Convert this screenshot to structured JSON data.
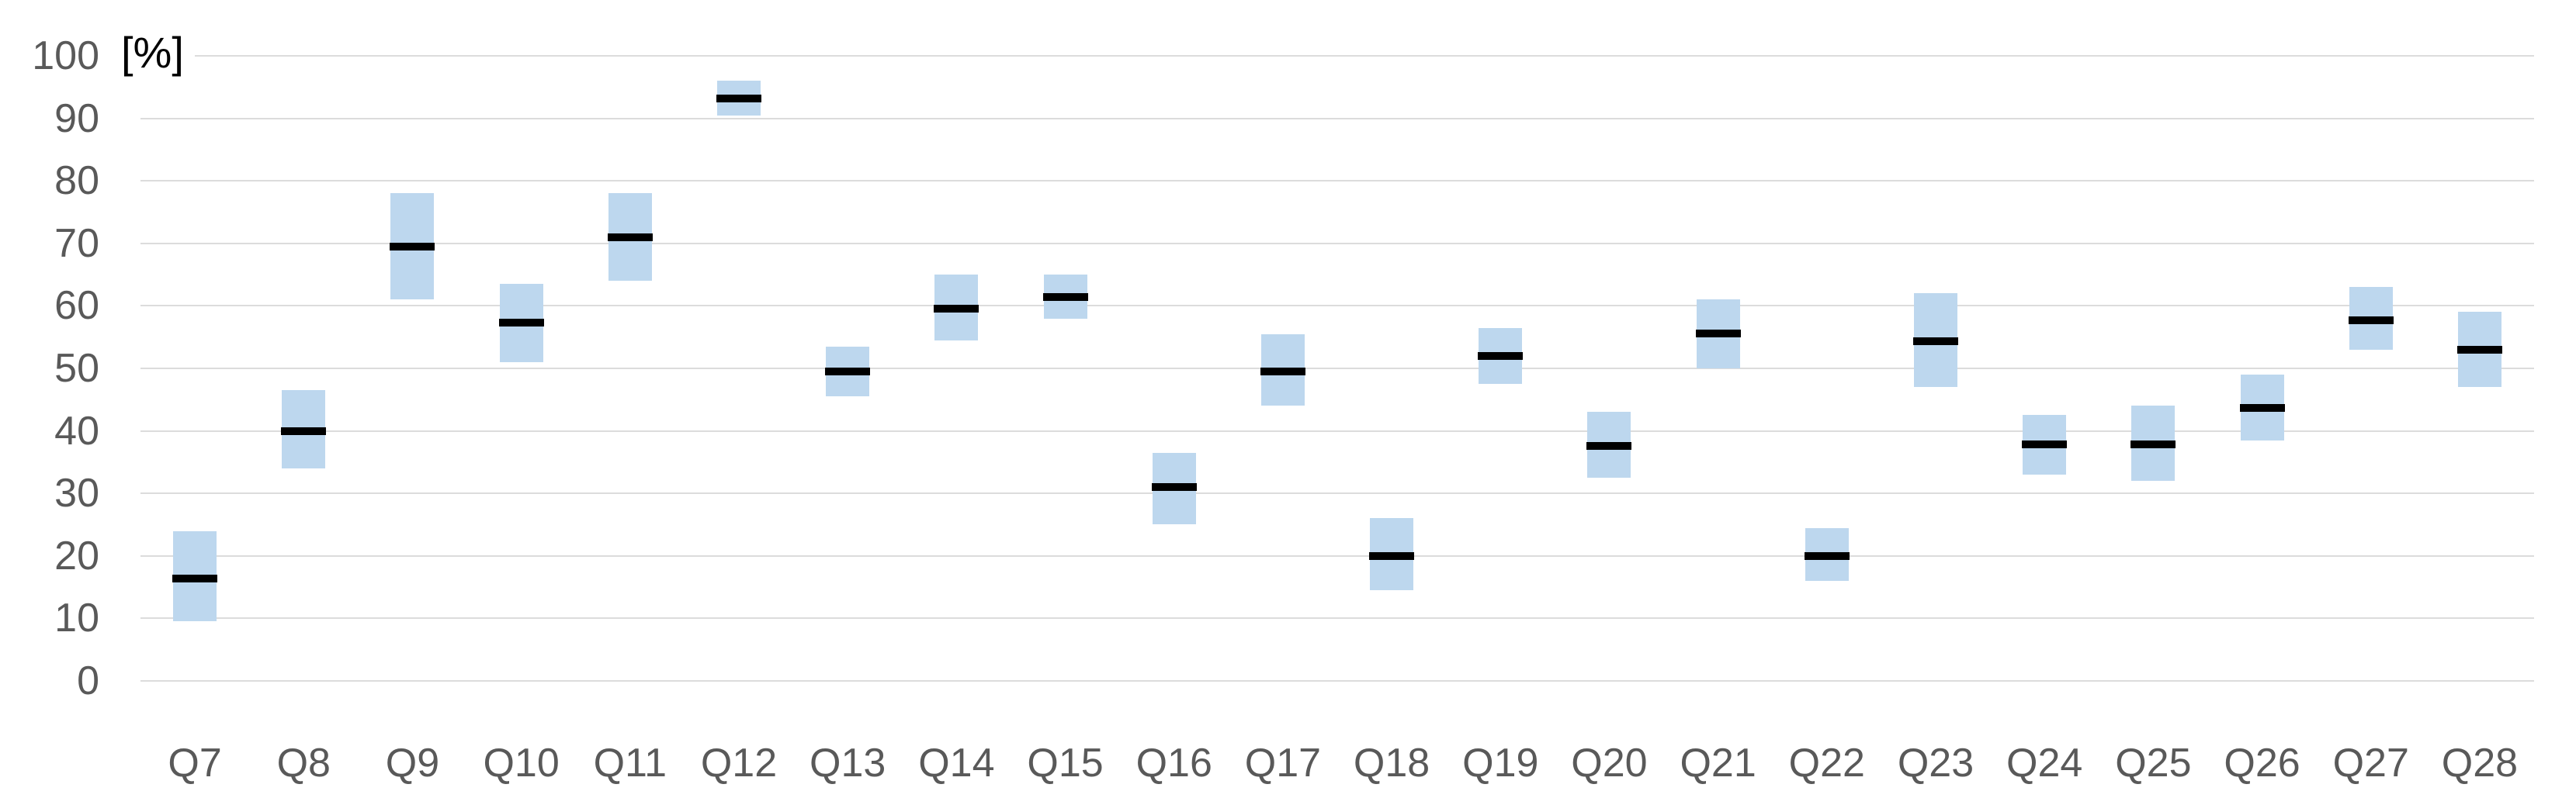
{
  "chart_data": {
    "type": "bar",
    "variant": "floating-range-boxes-with-mean-line",
    "title": "",
    "xlabel": "",
    "ylabel": "[%]",
    "ylim": [
      0,
      100
    ],
    "y_ticks": [
      0,
      10,
      20,
      30,
      40,
      50,
      60,
      70,
      80,
      90,
      100
    ],
    "grid": true,
    "legend_position": "none",
    "categories": [
      "Q7",
      "Q8",
      "Q9",
      "Q10",
      "Q11",
      "Q12",
      "Q13",
      "Q14",
      "Q15",
      "Q16",
      "Q17",
      "Q18",
      "Q19",
      "Q20",
      "Q21",
      "Q22",
      "Q23",
      "Q24",
      "Q25",
      "Q26",
      "Q27",
      "Q28"
    ],
    "series": [
      {
        "name": "range_low",
        "values": [
          9.5,
          34,
          61,
          51,
          64,
          90.5,
          45.5,
          54.5,
          58,
          25,
          44,
          14.5,
          47.5,
          32.5,
          50,
          16,
          47,
          33,
          32,
          38.5,
          53,
          47
        ]
      },
      {
        "name": "range_high",
        "values": [
          24,
          46.5,
          78,
          63.5,
          78,
          96,
          53.5,
          65,
          65,
          36.5,
          55.5,
          26,
          56.5,
          43,
          61,
          24.5,
          62,
          42.5,
          44,
          49,
          63,
          59
        ]
      },
      {
        "name": "mean",
        "values": [
          16.4,
          40,
          69.5,
          57.3,
          71,
          93.2,
          49.5,
          59.5,
          61.4,
          31,
          49.5,
          20,
          52,
          37.6,
          55.6,
          20,
          54.4,
          37.8,
          37.8,
          43.7,
          57.7,
          53
        ]
      }
    ],
    "colors": {
      "range_fill": "#BDD7EE",
      "mean_line": "#000000",
      "gridline": "#DCDCDC",
      "tick_text": "#595959",
      "unit_label_text": "#000000"
    }
  }
}
